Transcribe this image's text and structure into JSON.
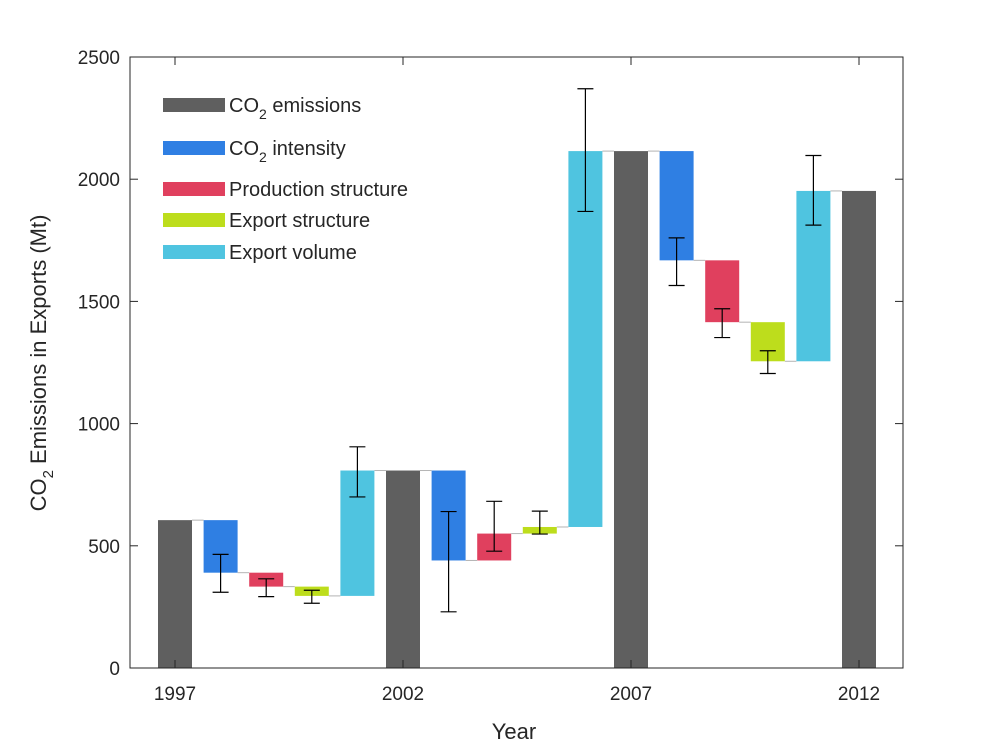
{
  "chart_data": {
    "type": "bar",
    "subtype": "waterfall",
    "xlabel": "Year",
    "ylabel": {
      "prefix": "CO",
      "sub": "2",
      "suffix": " Emissions in Exports (Mt)"
    },
    "ylim": [
      0,
      2500
    ],
    "yticks": [
      0,
      500,
      1000,
      1500,
      2000,
      2500
    ],
    "xticks": [
      {
        "label": "1997",
        "slot": 0
      },
      {
        "label": "2002",
        "slot": 5
      },
      {
        "label": "2007",
        "slot": 10
      },
      {
        "label": "2012",
        "slot": 15
      }
    ],
    "grid": false,
    "legend_position": "top-left",
    "legend": [
      {
        "key": "emissions",
        "prefix": "CO",
        "sub": "2",
        "suffix": " emissions",
        "color": "#5f5f5f"
      },
      {
        "key": "intensity",
        "prefix": "CO",
        "sub": "2",
        "suffix": " intensity",
        "color": "#2f7fe3"
      },
      {
        "key": "production",
        "prefix": "Production structure",
        "sub": "",
        "suffix": "",
        "color": "#e0405e"
      },
      {
        "key": "export_structure",
        "prefix": "Export structure",
        "sub": "",
        "suffix": "",
        "color": "#bddd1c"
      },
      {
        "key": "export_volume",
        "prefix": "Export volume",
        "sub": "",
        "suffix": "",
        "color": "#4fc4e0"
      }
    ],
    "bars": [
      {
        "slot": 0,
        "series": "emissions",
        "from": 0,
        "to": 605
      },
      {
        "slot": 1,
        "series": "intensity",
        "from": 605,
        "to": 390,
        "err": [
          310,
          465
        ]
      },
      {
        "slot": 2,
        "series": "production",
        "from": 390,
        "to": 333,
        "err": [
          292,
          365
        ]
      },
      {
        "slot": 3,
        "series": "export_structure",
        "from": 333,
        "to": 295,
        "err": [
          265,
          318
        ]
      },
      {
        "slot": 4,
        "series": "export_volume",
        "from": 295,
        "to": 808,
        "err": [
          700,
          905
        ]
      },
      {
        "slot": 5,
        "series": "emissions",
        "from": 0,
        "to": 808
      },
      {
        "slot": 6,
        "series": "intensity",
        "from": 808,
        "to": 440,
        "err": [
          230,
          640
        ]
      },
      {
        "slot": 7,
        "series": "production",
        "from": 440,
        "to": 550,
        "err": [
          478,
          682
        ]
      },
      {
        "slot": 8,
        "series": "export_structure",
        "from": 550,
        "to": 577,
        "err": [
          548,
          642
        ]
      },
      {
        "slot": 9,
        "series": "export_volume",
        "from": 577,
        "to": 2115,
        "err": [
          1868,
          2370
        ]
      },
      {
        "slot": 10,
        "series": "emissions",
        "from": 0,
        "to": 2115
      },
      {
        "slot": 11,
        "series": "intensity",
        "from": 2115,
        "to": 1668,
        "err": [
          1565,
          1760
        ]
      },
      {
        "slot": 12,
        "series": "production",
        "from": 1668,
        "to": 1415,
        "err": [
          1352,
          1470
        ]
      },
      {
        "slot": 13,
        "series": "export_structure",
        "from": 1415,
        "to": 1255,
        "err": [
          1205,
          1298
        ]
      },
      {
        "slot": 14,
        "series": "export_volume",
        "from": 1255,
        "to": 1952,
        "err": [
          1812,
          2097
        ]
      },
      {
        "slot": 15,
        "series": "emissions",
        "from": 0,
        "to": 1952
      }
    ]
  }
}
